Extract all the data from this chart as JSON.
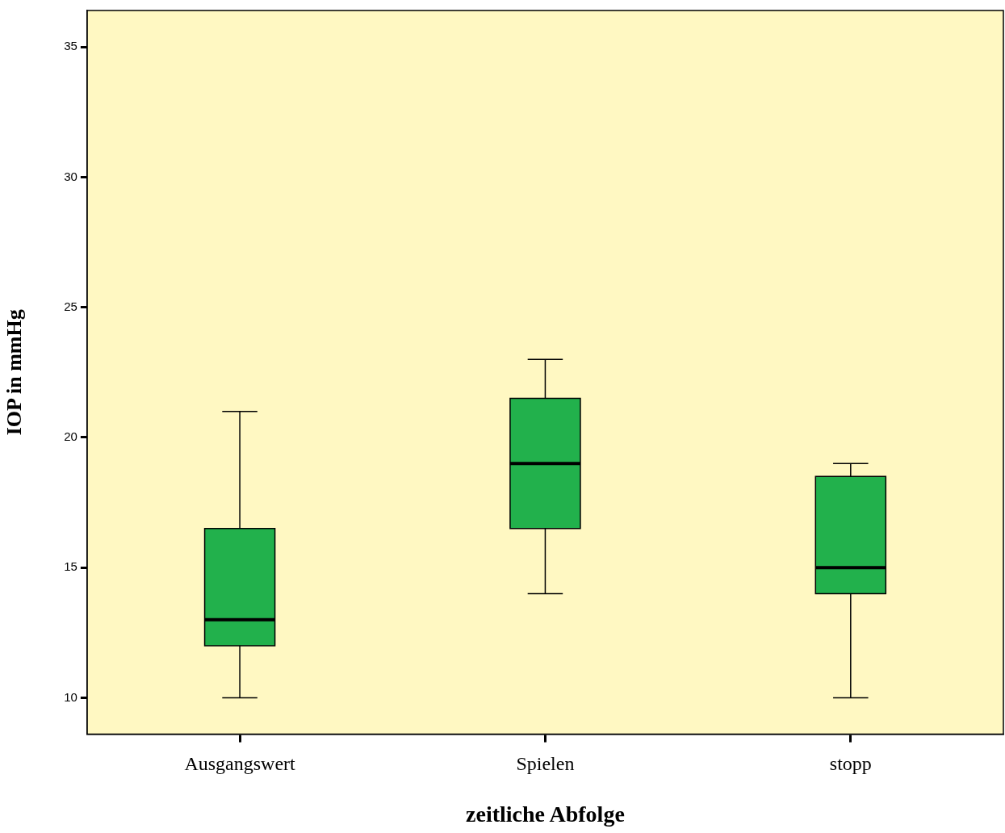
{
  "chart_data": {
    "type": "box",
    "xlabel": "zeitliche Abfolge",
    "ylabel": "IOP in mmHg",
    "categories": [
      "Ausgangswert",
      "Spielen",
      "stopp"
    ],
    "color": "#22b14c",
    "boxes": [
      {
        "low": 10,
        "q1": 12,
        "median": 13,
        "q3": 16.5,
        "high": 21
      },
      {
        "low": 14,
        "q1": 16.5,
        "median": 19,
        "q3": 21.5,
        "high": 23
      },
      {
        "low": 10,
        "q1": 14,
        "median": 15,
        "q3": 18.5,
        "high": 19
      }
    ],
    "ylim": [
      8.6,
      36.4
    ],
    "yticks": [
      10,
      15,
      20,
      25,
      30,
      35
    ],
    "grid": false
  }
}
